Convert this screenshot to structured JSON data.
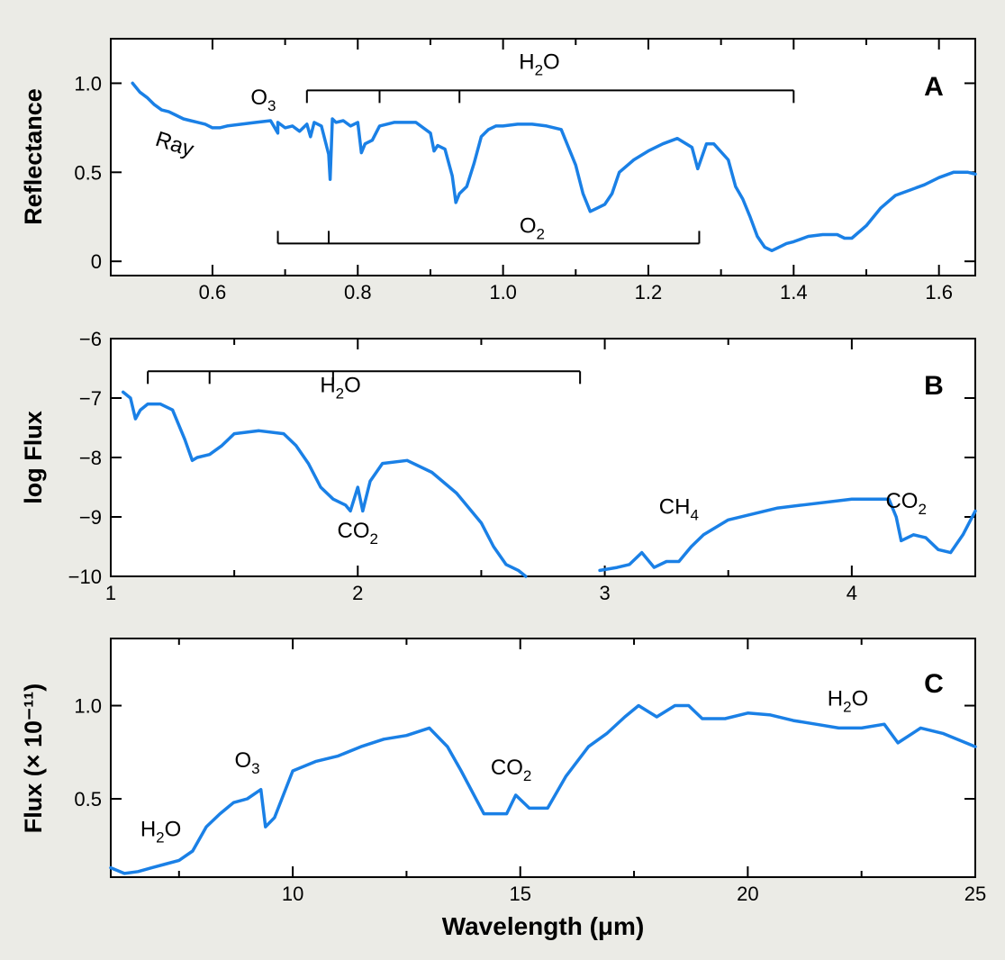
{
  "chart_data": [
    {
      "id": "A",
      "type": "line",
      "panel_letter": "A",
      "ylabel": "Reflectance",
      "xlim": [
        0.46,
        1.65
      ],
      "ylim": [
        -0.08,
        1.25
      ],
      "x_ticks": [
        {
          "value": 0.6,
          "label": "0.6"
        },
        {
          "value": 0.8,
          "label": "0.8"
        },
        {
          "value": 1.0,
          "label": "1.0"
        },
        {
          "value": 1.2,
          "label": "1.2"
        },
        {
          "value": 1.4,
          "label": "1.4"
        },
        {
          "value": 1.6,
          "label": "1.6"
        }
      ],
      "x_minor": [
        0.7,
        0.9,
        1.1,
        1.3,
        1.5
      ],
      "y_ticks": [
        {
          "value": 0,
          "label": "0"
        },
        {
          "value": 0.5,
          "label": "0.5"
        },
        {
          "value": 1.0,
          "label": "1.0"
        }
      ],
      "line_color": "#1a80e6",
      "series": [
        {
          "x": [
            0.49,
            0.5,
            0.51,
            0.52,
            0.53,
            0.54,
            0.55,
            0.56,
            0.57,
            0.58,
            0.59,
            0.6,
            0.61,
            0.62,
            0.64,
            0.66,
            0.68,
            0.69,
            0.69,
            0.7,
            0.71,
            0.72,
            0.73,
            0.735,
            0.74,
            0.75,
            0.76,
            0.762,
            0.765,
            0.77,
            0.78,
            0.79,
            0.8,
            0.805,
            0.81,
            0.82,
            0.83,
            0.85,
            0.88,
            0.9,
            0.905,
            0.91,
            0.92,
            0.93,
            0.935,
            0.94,
            0.95,
            0.96,
            0.97,
            0.98,
            0.99,
            1.0,
            1.02,
            1.04,
            1.06,
            1.08,
            1.1,
            1.11,
            1.12,
            1.13,
            1.14,
            1.15,
            1.16,
            1.18,
            1.2,
            1.22,
            1.24,
            1.26,
            1.268,
            1.28,
            1.29,
            1.31,
            1.32,
            1.33,
            1.34,
            1.35,
            1.36,
            1.37,
            1.38,
            1.39,
            1.4,
            1.42,
            1.44,
            1.46,
            1.47,
            1.48,
            1.5,
            1.52,
            1.54,
            1.56,
            1.58,
            1.6,
            1.62,
            1.64,
            1.65
          ],
          "y": [
            1.0,
            0.95,
            0.92,
            0.88,
            0.85,
            0.84,
            0.82,
            0.8,
            0.79,
            0.78,
            0.77,
            0.75,
            0.75,
            0.76,
            0.77,
            0.78,
            0.79,
            0.72,
            0.78,
            0.75,
            0.76,
            0.73,
            0.77,
            0.7,
            0.78,
            0.76,
            0.6,
            0.46,
            0.8,
            0.78,
            0.79,
            0.76,
            0.78,
            0.61,
            0.66,
            0.68,
            0.76,
            0.78,
            0.78,
            0.72,
            0.62,
            0.65,
            0.63,
            0.48,
            0.33,
            0.38,
            0.42,
            0.55,
            0.7,
            0.74,
            0.76,
            0.76,
            0.77,
            0.77,
            0.76,
            0.74,
            0.54,
            0.38,
            0.28,
            0.3,
            0.32,
            0.38,
            0.5,
            0.57,
            0.62,
            0.66,
            0.69,
            0.64,
            0.52,
            0.66,
            0.66,
            0.57,
            0.42,
            0.35,
            0.25,
            0.14,
            0.08,
            0.06,
            0.08,
            0.1,
            0.11,
            0.14,
            0.15,
            0.15,
            0.13,
            0.13,
            0.2,
            0.3,
            0.37,
            0.4,
            0.43,
            0.47,
            0.5,
            0.5,
            0.49
          ]
        }
      ],
      "annotations": [
        {
          "base": "Ray",
          "sub": "",
          "x": 0.545,
          "y": 0.62,
          "rotate": 18
        },
        {
          "base": "O",
          "sub": "3",
          "x": 0.67,
          "y": 0.88
        },
        {
          "base": "H",
          "sub": "2",
          "base2": "O",
          "x": 1.05,
          "y": 1.08
        },
        {
          "base": "O",
          "sub": "2",
          "x": 1.04,
          "y": 0.16
        }
      ],
      "brackets": [
        {
          "label": "H2O",
          "x1": 0.73,
          "x2": 1.4,
          "ticks": [
            0.83,
            0.94
          ],
          "y": 0.96,
          "dir": "down"
        },
        {
          "label": "O2",
          "x1": 0.69,
          "x2": 1.27,
          "ticks": [
            0.76
          ],
          "y": 0.1,
          "dir": "up"
        }
      ]
    },
    {
      "id": "B",
      "type": "line",
      "panel_letter": "B",
      "ylabel": "log Flux",
      "xlim": [
        1.0,
        4.5
      ],
      "ylim": [
        -10.0,
        -6.0
      ],
      "x_ticks": [
        {
          "value": 1,
          "label": "1"
        },
        {
          "value": 2,
          "label": "2"
        },
        {
          "value": 3,
          "label": "3"
        },
        {
          "value": 4,
          "label": "4"
        }
      ],
      "x_minor": [
        1.5,
        2.5,
        3.5
      ],
      "y_ticks": [
        {
          "value": -10,
          "label": "−10"
        },
        {
          "value": -9,
          "label": "−9"
        },
        {
          "value": -8,
          "label": "−8"
        },
        {
          "value": -7,
          "label": "−7"
        },
        {
          "value": -6,
          "label": "−6"
        }
      ],
      "line_color": "#1a80e6",
      "series": [
        {
          "x": [
            1.05,
            1.08,
            1.1,
            1.12,
            1.15,
            1.2,
            1.25,
            1.3,
            1.33,
            1.35,
            1.4,
            1.45,
            1.5,
            1.6,
            1.7,
            1.75,
            1.8,
            1.85,
            1.9,
            1.95,
            1.97,
            2.0,
            2.02,
            2.05,
            2.1,
            2.2,
            2.3,
            2.4,
            2.5,
            2.55,
            2.6,
            2.65,
            2.68
          ],
          "y": [
            -6.9,
            -7.0,
            -7.35,
            -7.2,
            -7.1,
            -7.1,
            -7.2,
            -7.7,
            -8.05,
            -8.0,
            -7.95,
            -7.8,
            -7.6,
            -7.55,
            -7.6,
            -7.8,
            -8.1,
            -8.5,
            -8.7,
            -8.8,
            -8.9,
            -8.5,
            -8.9,
            -8.4,
            -8.1,
            -8.05,
            -8.25,
            -8.6,
            -9.1,
            -9.5,
            -9.8,
            -9.9,
            -10.0
          ]
        },
        {
          "x": [
            2.98,
            3.05,
            3.1,
            3.15,
            3.2,
            3.25,
            3.3,
            3.35,
            3.4,
            3.5,
            3.6,
            3.7,
            3.8,
            4.0,
            4.1,
            4.15,
            4.18,
            4.2,
            4.25,
            4.3,
            4.35,
            4.4,
            4.45,
            4.5
          ],
          "y": [
            -9.9,
            -9.85,
            -9.8,
            -9.6,
            -9.85,
            -9.75,
            -9.75,
            -9.5,
            -9.3,
            -9.05,
            -8.95,
            -8.85,
            -8.8,
            -8.7,
            -8.7,
            -8.7,
            -9.0,
            -9.4,
            -9.3,
            -9.35,
            -9.55,
            -9.6,
            -9.3,
            -8.9
          ]
        }
      ],
      "annotations": [
        {
          "base": "H",
          "sub": "2",
          "base2": "O",
          "x": 1.93,
          "y": -6.9
        },
        {
          "base": "CO",
          "sub": "2",
          "x": 2.0,
          "y": -9.35
        },
        {
          "base": "CH",
          "sub": "4",
          "x": 3.3,
          "y": -8.95
        },
        {
          "base": "CO",
          "sub": "2",
          "x": 4.22,
          "y": -8.85
        }
      ],
      "brackets": [
        {
          "label": "H2O",
          "x1": 1.15,
          "x2": 2.9,
          "ticks": [
            1.4,
            1.9
          ],
          "y": -6.55,
          "dir": "down"
        }
      ]
    },
    {
      "id": "C",
      "type": "line",
      "panel_letter": "C",
      "ylabel": "Flux (× 10⁻¹¹)",
      "xlabel": "Wavelength (μm)",
      "xlim": [
        6.0,
        25.0
      ],
      "ylim": [
        0.08,
        1.36
      ],
      "x_ticks": [
        {
          "value": 10,
          "label": "10"
        },
        {
          "value": 15,
          "label": "15"
        },
        {
          "value": 20,
          "label": "20"
        },
        {
          "value": 25,
          "label": "25"
        }
      ],
      "x_minor": [
        7.5,
        12.5,
        17.5,
        22.5
      ],
      "y_ticks": [
        {
          "value": 0.5,
          "label": "0.5"
        },
        {
          "value": 1.0,
          "label": "1.0"
        }
      ],
      "line_color": "#1a80e6",
      "series": [
        {
          "x": [
            6.0,
            6.3,
            6.6,
            6.9,
            7.2,
            7.5,
            7.8,
            8.1,
            8.4,
            8.7,
            9.0,
            9.3,
            9.4,
            9.6,
            10.0,
            10.5,
            11.0,
            11.5,
            12.0,
            12.5,
            13.0,
            13.4,
            13.7,
            14.2,
            14.7,
            14.9,
            15.2,
            15.6,
            16.0,
            16.5,
            16.9,
            17.3,
            17.6,
            18.0,
            18.4,
            18.7,
            19.0,
            19.5,
            20.0,
            20.5,
            21.0,
            21.5,
            22.0,
            22.5,
            23.0,
            23.3,
            23.8,
            24.3,
            25.0
          ],
          "y": [
            0.13,
            0.1,
            0.11,
            0.13,
            0.15,
            0.17,
            0.22,
            0.35,
            0.42,
            0.48,
            0.5,
            0.55,
            0.35,
            0.4,
            0.65,
            0.7,
            0.73,
            0.78,
            0.82,
            0.84,
            0.88,
            0.78,
            0.65,
            0.42,
            0.42,
            0.52,
            0.45,
            0.45,
            0.62,
            0.78,
            0.85,
            0.94,
            1.0,
            0.94,
            1.0,
            1.0,
            0.93,
            0.93,
            0.96,
            0.95,
            0.92,
            0.9,
            0.88,
            0.88,
            0.9,
            0.8,
            0.88,
            0.85,
            0.78
          ]
        }
      ],
      "annotations": [
        {
          "base": "H",
          "sub": "2",
          "base2": "O",
          "x": 7.1,
          "y": 0.3
        },
        {
          "base": "O",
          "sub": "3",
          "x": 9.0,
          "y": 0.67
        },
        {
          "base": "CO",
          "sub": "2",
          "x": 14.8,
          "y": 0.63
        },
        {
          "base": "H",
          "sub": "2",
          "base2": "O",
          "x": 22.2,
          "y": 1.0
        }
      ],
      "brackets": []
    }
  ]
}
